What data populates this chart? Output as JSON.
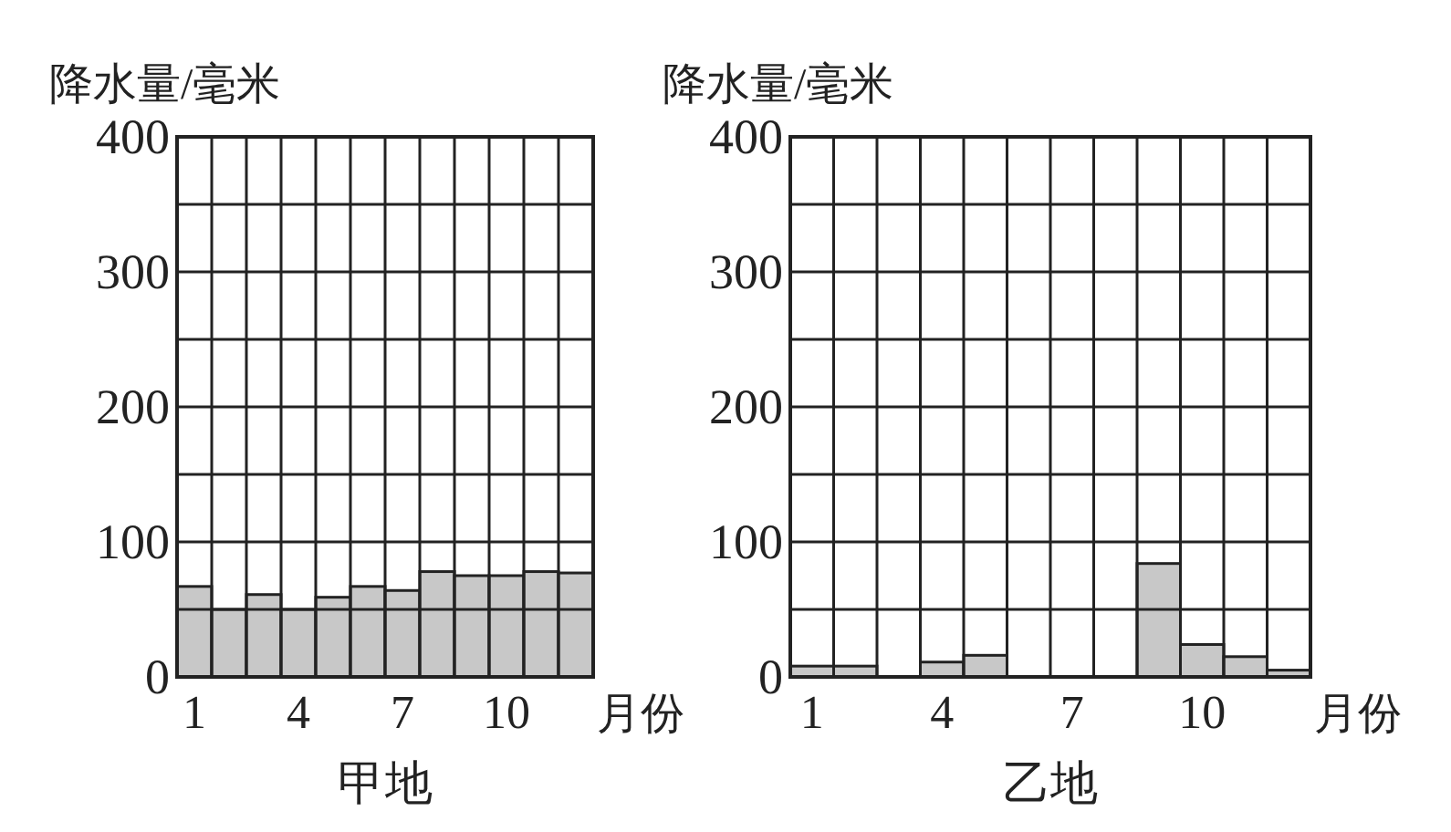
{
  "chart_data": [
    {
      "type": "bar",
      "title": "甲地",
      "ylabel": "降水量/毫米",
      "xlabel": "月份",
      "categories": [
        "1",
        null,
        null,
        "4",
        null,
        null,
        "7",
        null,
        null,
        "10",
        null,
        null
      ],
      "values": [
        67,
        50,
        61,
        50,
        59,
        67,
        64,
        78,
        75,
        75,
        78,
        77
      ],
      "color": "#c8c8c8",
      "ylim": [
        0,
        400
      ],
      "yticks": [
        0,
        {
          "value": 50,
          "label": null
        },
        100,
        {
          "value": 150,
          "label": null
        },
        200,
        {
          "value": 250,
          "label": null
        },
        300,
        {
          "value": 350,
          "label": null
        },
        400
      ],
      "grid": true
    },
    {
      "type": "bar",
      "title": "乙地",
      "ylabel": "降水量/毫米",
      "xlabel": "月份",
      "categories": [
        "1",
        null,
        null,
        "4",
        null,
        null,
        "7",
        null,
        null,
        "10",
        null,
        null
      ],
      "values": [
        8,
        8,
        0,
        11,
        16,
        0,
        0,
        0,
        84,
        24,
        15,
        5
      ],
      "color": "#c8c8c8",
      "ylim": [
        0,
        400
      ],
      "yticks": [
        0,
        {
          "value": 50,
          "label": null
        },
        100,
        {
          "value": 150,
          "label": null
        },
        200,
        {
          "value": 250,
          "label": null
        },
        300,
        {
          "value": 350,
          "label": null
        },
        400
      ],
      "grid": true
    }
  ]
}
